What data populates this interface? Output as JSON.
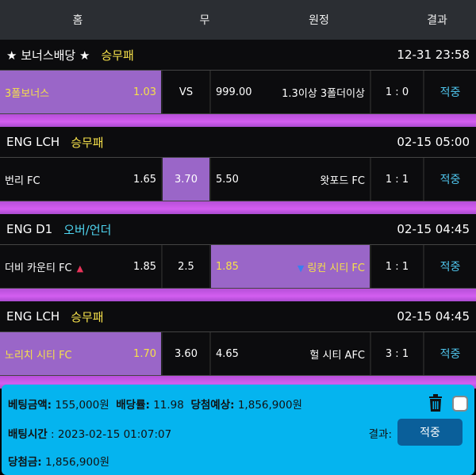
{
  "header": {
    "home": "홈",
    "draw": "무",
    "away": "원정",
    "result": "결과"
  },
  "sections": [
    {
      "league": "★ 보너스배당 ★",
      "type": "승무패",
      "time": "12-31 23:58",
      "home": "3폴보너스",
      "home_odds": "1.03",
      "draw": "VS",
      "away_odds": "999.00",
      "away": "1.3이상 3폴더이상",
      "score": "1 : 0",
      "result": "적중",
      "selected": "home"
    },
    {
      "league": "ENG LCH",
      "type": "승무패",
      "time": "02-15 05:00",
      "home": "번리 FC",
      "home_odds": "1.65",
      "draw": "3.70",
      "away_odds": "5.50",
      "away": "왓포드 FC",
      "score": "1 : 1",
      "result": "적중",
      "selected": "draw"
    },
    {
      "league": "ENG D1",
      "type": "오버/언더",
      "time": "02-15 04:45",
      "home": "더비 카운티 FC",
      "home_odds": "1.85",
      "draw": "2.5",
      "away_odds": "1.85",
      "away": "링컨 시티 FC",
      "score": "1 : 1",
      "result": "적중",
      "selected": "away"
    },
    {
      "league": "ENG LCH",
      "type": "승무패",
      "time": "02-15 04:45",
      "home": "노리치 시티 FC",
      "home_odds": "1.70",
      "draw": "3.60",
      "away_odds": "4.65",
      "away": "헐 시티 AFC",
      "score": "3 : 1",
      "result": "적중",
      "selected": "home"
    }
  ],
  "summary": {
    "bet_label": "베팅금액:",
    "bet": "155,000원",
    "odds_label": "배당률:",
    "odds": "11.98",
    "expected_label": "당첨예상:",
    "expected": "1,856,900원",
    "time_label": "배팅시간",
    "time": ": 2023-02-15 01:07:07",
    "result_label": "결과:",
    "result": "적중",
    "win_label": "당첨금:",
    "win": "1,856,900원"
  }
}
